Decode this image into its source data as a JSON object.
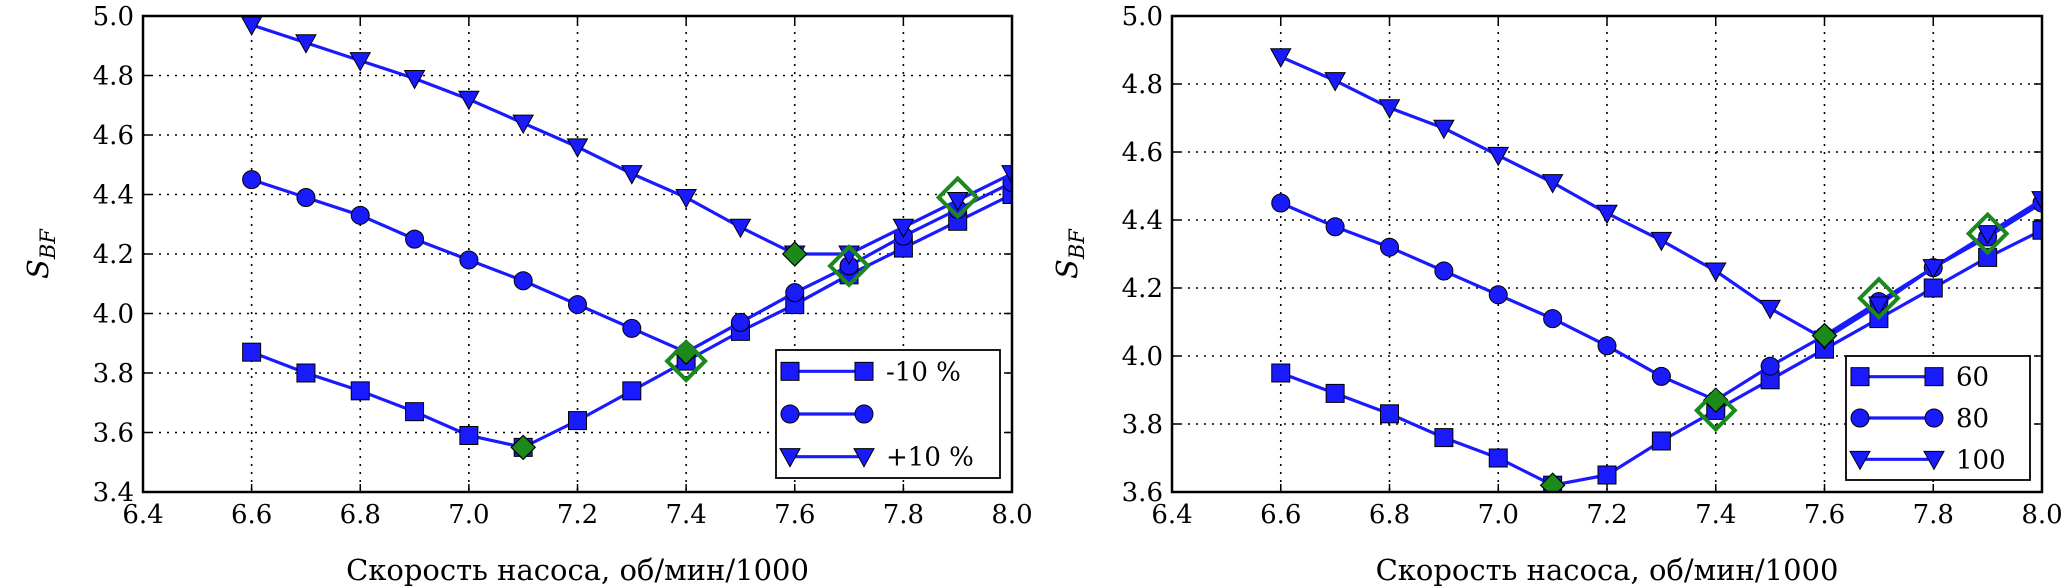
{
  "chart_data": [
    {
      "type": "line",
      "xlabel": "Скорость насоса, об/мин/1000",
      "ylabel": "S",
      "ylabel_sub": "BF",
      "xlim": [
        6.4,
        8.0
      ],
      "ylim": [
        3.4,
        5.0
      ],
      "xticks": [
        "6.4",
        "6.6",
        "6.8",
        "7.0",
        "7.2",
        "7.4",
        "7.6",
        "7.8",
        "8.0"
      ],
      "yticks": [
        "3.4",
        "3.6",
        "3.8",
        "4.0",
        "4.2",
        "4.4",
        "4.6",
        "4.8",
        "5.0"
      ],
      "grid": true,
      "legend_position": "lower-right",
      "series": [
        {
          "name": "-10 %",
          "marker": "square",
          "color": "#1a1aff",
          "x": [
            6.6,
            6.7,
            6.8,
            6.9,
            7.0,
            7.1,
            7.2,
            7.3,
            7.4,
            7.5,
            7.6,
            7.7,
            7.8,
            7.9,
            8.0
          ],
          "y": [
            3.87,
            3.8,
            3.74,
            3.67,
            3.59,
            3.55,
            3.64,
            3.74,
            3.84,
            3.94,
            4.03,
            4.13,
            4.22,
            4.31,
            4.4
          ]
        },
        {
          "name": "",
          "marker": "circle",
          "color": "#1a1aff",
          "x": [
            6.6,
            6.7,
            6.8,
            6.9,
            7.0,
            7.1,
            7.2,
            7.3,
            7.4,
            7.5,
            7.6,
            7.7,
            7.8,
            7.9,
            8.0
          ],
          "y": [
            4.45,
            4.39,
            4.33,
            4.25,
            4.18,
            4.11,
            4.03,
            3.95,
            3.87,
            3.97,
            4.07,
            4.16,
            4.26,
            4.35,
            4.44
          ]
        },
        {
          "name": "+10 %",
          "marker": "triangle-down",
          "color": "#1a1aff",
          "x": [
            6.6,
            6.7,
            6.8,
            6.9,
            7.0,
            7.1,
            7.2,
            7.3,
            7.4,
            7.5,
            7.6,
            7.7,
            7.8,
            7.9,
            8.0
          ],
          "y": [
            4.97,
            4.91,
            4.85,
            4.79,
            4.72,
            4.64,
            4.56,
            4.47,
            4.39,
            4.29,
            4.2,
            4.2,
            4.29,
            4.38,
            4.47
          ]
        }
      ],
      "highlights": {
        "filled": [
          [
            7.1,
            3.55
          ],
          [
            7.4,
            3.87
          ],
          [
            7.6,
            4.2
          ]
        ],
        "open": [
          [
            7.4,
            3.84
          ],
          [
            7.7,
            4.16
          ],
          [
            7.9,
            4.39
          ]
        ],
        "color": "#1b8a1b"
      }
    },
    {
      "type": "line",
      "xlabel": "Скорость насоса, об/мин/1000",
      "ylabel": "S",
      "ylabel_sub": "BF",
      "xlim": [
        6.4,
        8.0
      ],
      "ylim": [
        3.6,
        5.0
      ],
      "xticks": [
        "6.4",
        "6.6",
        "6.8",
        "7.0",
        "7.2",
        "7.4",
        "7.6",
        "7.8",
        "8.0"
      ],
      "yticks": [
        "3.6",
        "3.8",
        "4.0",
        "4.2",
        "4.4",
        "4.6",
        "4.8",
        "5.0"
      ],
      "grid": true,
      "legend_position": "lower-right",
      "series": [
        {
          "name": "60",
          "marker": "square",
          "color": "#1a1aff",
          "x": [
            6.6,
            6.7,
            6.8,
            6.9,
            7.0,
            7.1,
            7.2,
            7.3,
            7.4,
            7.5,
            7.6,
            7.7,
            7.8,
            7.9,
            8.0
          ],
          "y": [
            3.95,
            3.89,
            3.83,
            3.76,
            3.7,
            3.62,
            3.65,
            3.75,
            3.84,
            3.93,
            4.02,
            4.11,
            4.2,
            4.29,
            4.37
          ]
        },
        {
          "name": "80",
          "marker": "circle",
          "color": "#1a1aff",
          "x": [
            6.6,
            6.7,
            6.8,
            6.9,
            7.0,
            7.1,
            7.2,
            7.3,
            7.4,
            7.5,
            7.6,
            7.7,
            7.8,
            7.9,
            8.0
          ],
          "y": [
            4.45,
            4.38,
            4.32,
            4.25,
            4.18,
            4.11,
            4.03,
            3.94,
            3.87,
            3.97,
            4.06,
            4.16,
            4.26,
            4.35,
            4.45
          ]
        },
        {
          "name": "100",
          "marker": "triangle-down",
          "color": "#1a1aff",
          "x": [
            6.6,
            6.7,
            6.8,
            6.9,
            7.0,
            7.1,
            7.2,
            7.3,
            7.4,
            7.5,
            7.6,
            7.7,
            7.8,
            7.9,
            8.0
          ],
          "y": [
            4.88,
            4.81,
            4.73,
            4.67,
            4.59,
            4.51,
            4.42,
            4.34,
            4.25,
            4.14,
            4.05,
            4.15,
            4.26,
            4.36,
            4.46
          ]
        }
      ],
      "highlights": {
        "filled": [
          [
            7.1,
            3.62
          ],
          [
            7.4,
            3.87
          ],
          [
            7.6,
            4.06
          ]
        ],
        "open": [
          [
            7.4,
            3.84
          ],
          [
            7.7,
            4.17
          ],
          [
            7.9,
            4.36
          ]
        ],
        "color": "#1b8a1b"
      }
    }
  ]
}
